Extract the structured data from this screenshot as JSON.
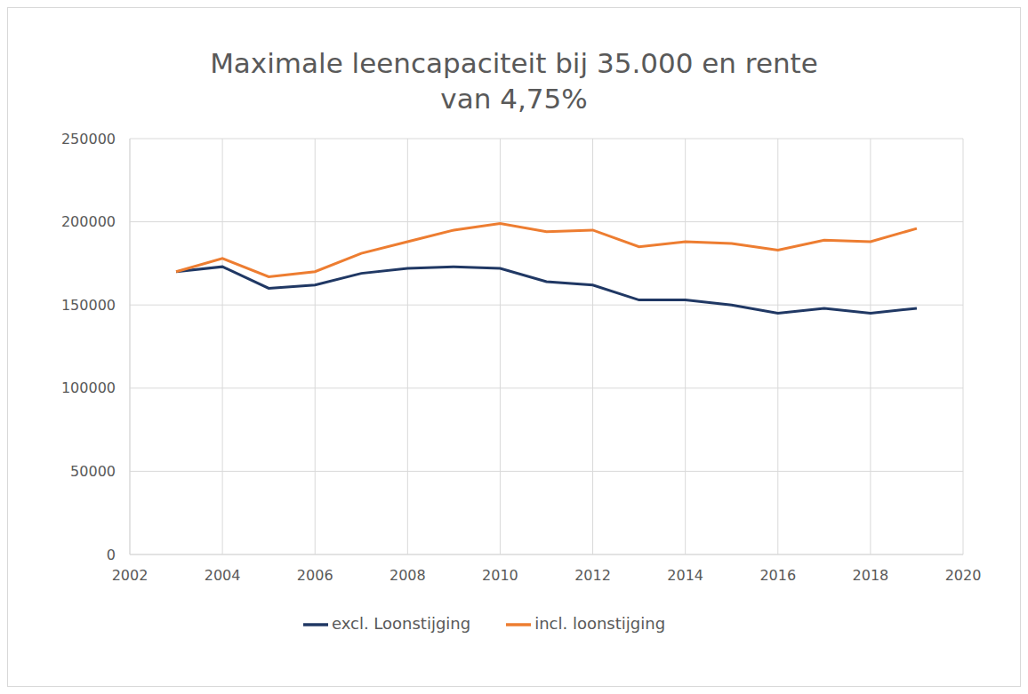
{
  "chart_data": {
    "type": "line",
    "title": "Maximale leencapaciteit bij 35.000 en rente\nvan 4,75%",
    "x": [
      2003,
      2004,
      2005,
      2006,
      2007,
      2008,
      2009,
      2010,
      2011,
      2012,
      2013,
      2014,
      2015,
      2016,
      2017,
      2018,
      2019
    ],
    "series": [
      {
        "name": "excl. Loonstijging",
        "color": "#203864",
        "values": [
          170000,
          173000,
          160000,
          162000,
          169000,
          172000,
          173000,
          172000,
          164000,
          162000,
          153000,
          153000,
          150000,
          145000,
          148000,
          145000,
          148000
        ]
      },
      {
        "name": "incl. loonstijging",
        "color": "#ed7d31",
        "values": [
          170000,
          178000,
          167000,
          170000,
          181000,
          188000,
          195000,
          199000,
          194000,
          195000,
          185000,
          188000,
          187000,
          183000,
          189000,
          188000,
          196000
        ]
      }
    ],
    "xlim": [
      2002,
      2020
    ],
    "xticks": [
      2002,
      2004,
      2006,
      2008,
      2010,
      2012,
      2014,
      2016,
      2018,
      2020
    ],
    "ylim": [
      0,
      250000
    ],
    "yticks": [
      0,
      50000,
      100000,
      150000,
      200000,
      250000
    ],
    "grid": true,
    "legend": "bottom"
  }
}
